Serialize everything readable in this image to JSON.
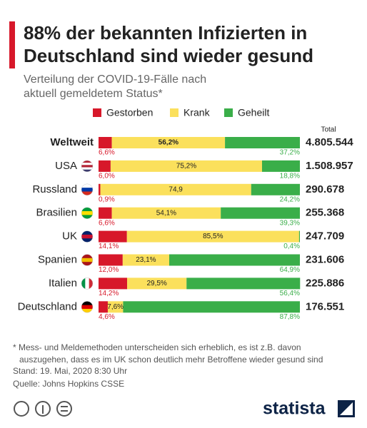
{
  "chart_data": {
    "type": "stacked-bar-horizontal",
    "title": [
      "88% der bekannten Infizierten in",
      "Deutschland sind wieder gesund"
    ],
    "subtitle": [
      "Verteilung der COVID-19-Fälle nach",
      "aktuell gemeldetem Status*"
    ],
    "categories": [
      "Weltweit",
      "USA",
      "Russland",
      "Brasilien",
      "UK",
      "Spanien",
      "Italien",
      "Deutschland"
    ],
    "xlim": [
      0,
      100
    ],
    "series": [
      {
        "name": "Gestorben",
        "color": "#d7182a",
        "values": [
          6.6,
          6.0,
          0.9,
          6.6,
          14.1,
          12.0,
          14.2,
          4.6
        ],
        "value_labels": [
          "6,6%",
          "6,0%",
          "0,9%",
          "6,6%",
          "14,1%",
          "12,0%",
          "14,2%",
          "4,6%"
        ]
      },
      {
        "name": "Krank",
        "color": "#fbe05c",
        "values": [
          56.2,
          75.2,
          74.9,
          54.1,
          85.5,
          23.1,
          29.5,
          7.6
        ],
        "value_labels": [
          "56,2%",
          "75,2%",
          "74,9",
          "54,1%",
          "85,5%",
          "23,1%",
          "29,5%",
          "7,6%"
        ]
      },
      {
        "name": "Geheilt",
        "color": "#3aae49",
        "values": [
          37.2,
          18.8,
          24.2,
          39.3,
          0.4,
          64.9,
          56.4,
          87.8
        ],
        "value_labels": [
          "37,2%",
          "18,8%",
          "24,2%",
          "39,3%",
          "0,4%",
          "64,9%",
          "56,4%",
          "87,8%"
        ]
      }
    ],
    "totals": {
      "label": "Total",
      "values": [
        4805544,
        1508957,
        290678,
        255368,
        247709,
        231606,
        225886,
        176551
      ],
      "value_labels": [
        "4.805.544",
        "1.508.957",
        "290.678",
        "255.368",
        "247.709",
        "231.606",
        "225.886",
        "176.551"
      ]
    },
    "notes": [
      "* Mess- und Meldemethoden unterscheiden sich erheblich, es ist z.B. davon",
      "auszugehen, dass es im UK schon deutlich mehr Betroffene wieder gesund sind",
      "Stand: 19. Mai, 2020 8:30 Uhr",
      "Quelle: Johns Hopkins CSSE"
    ],
    "brand": "statista"
  }
}
